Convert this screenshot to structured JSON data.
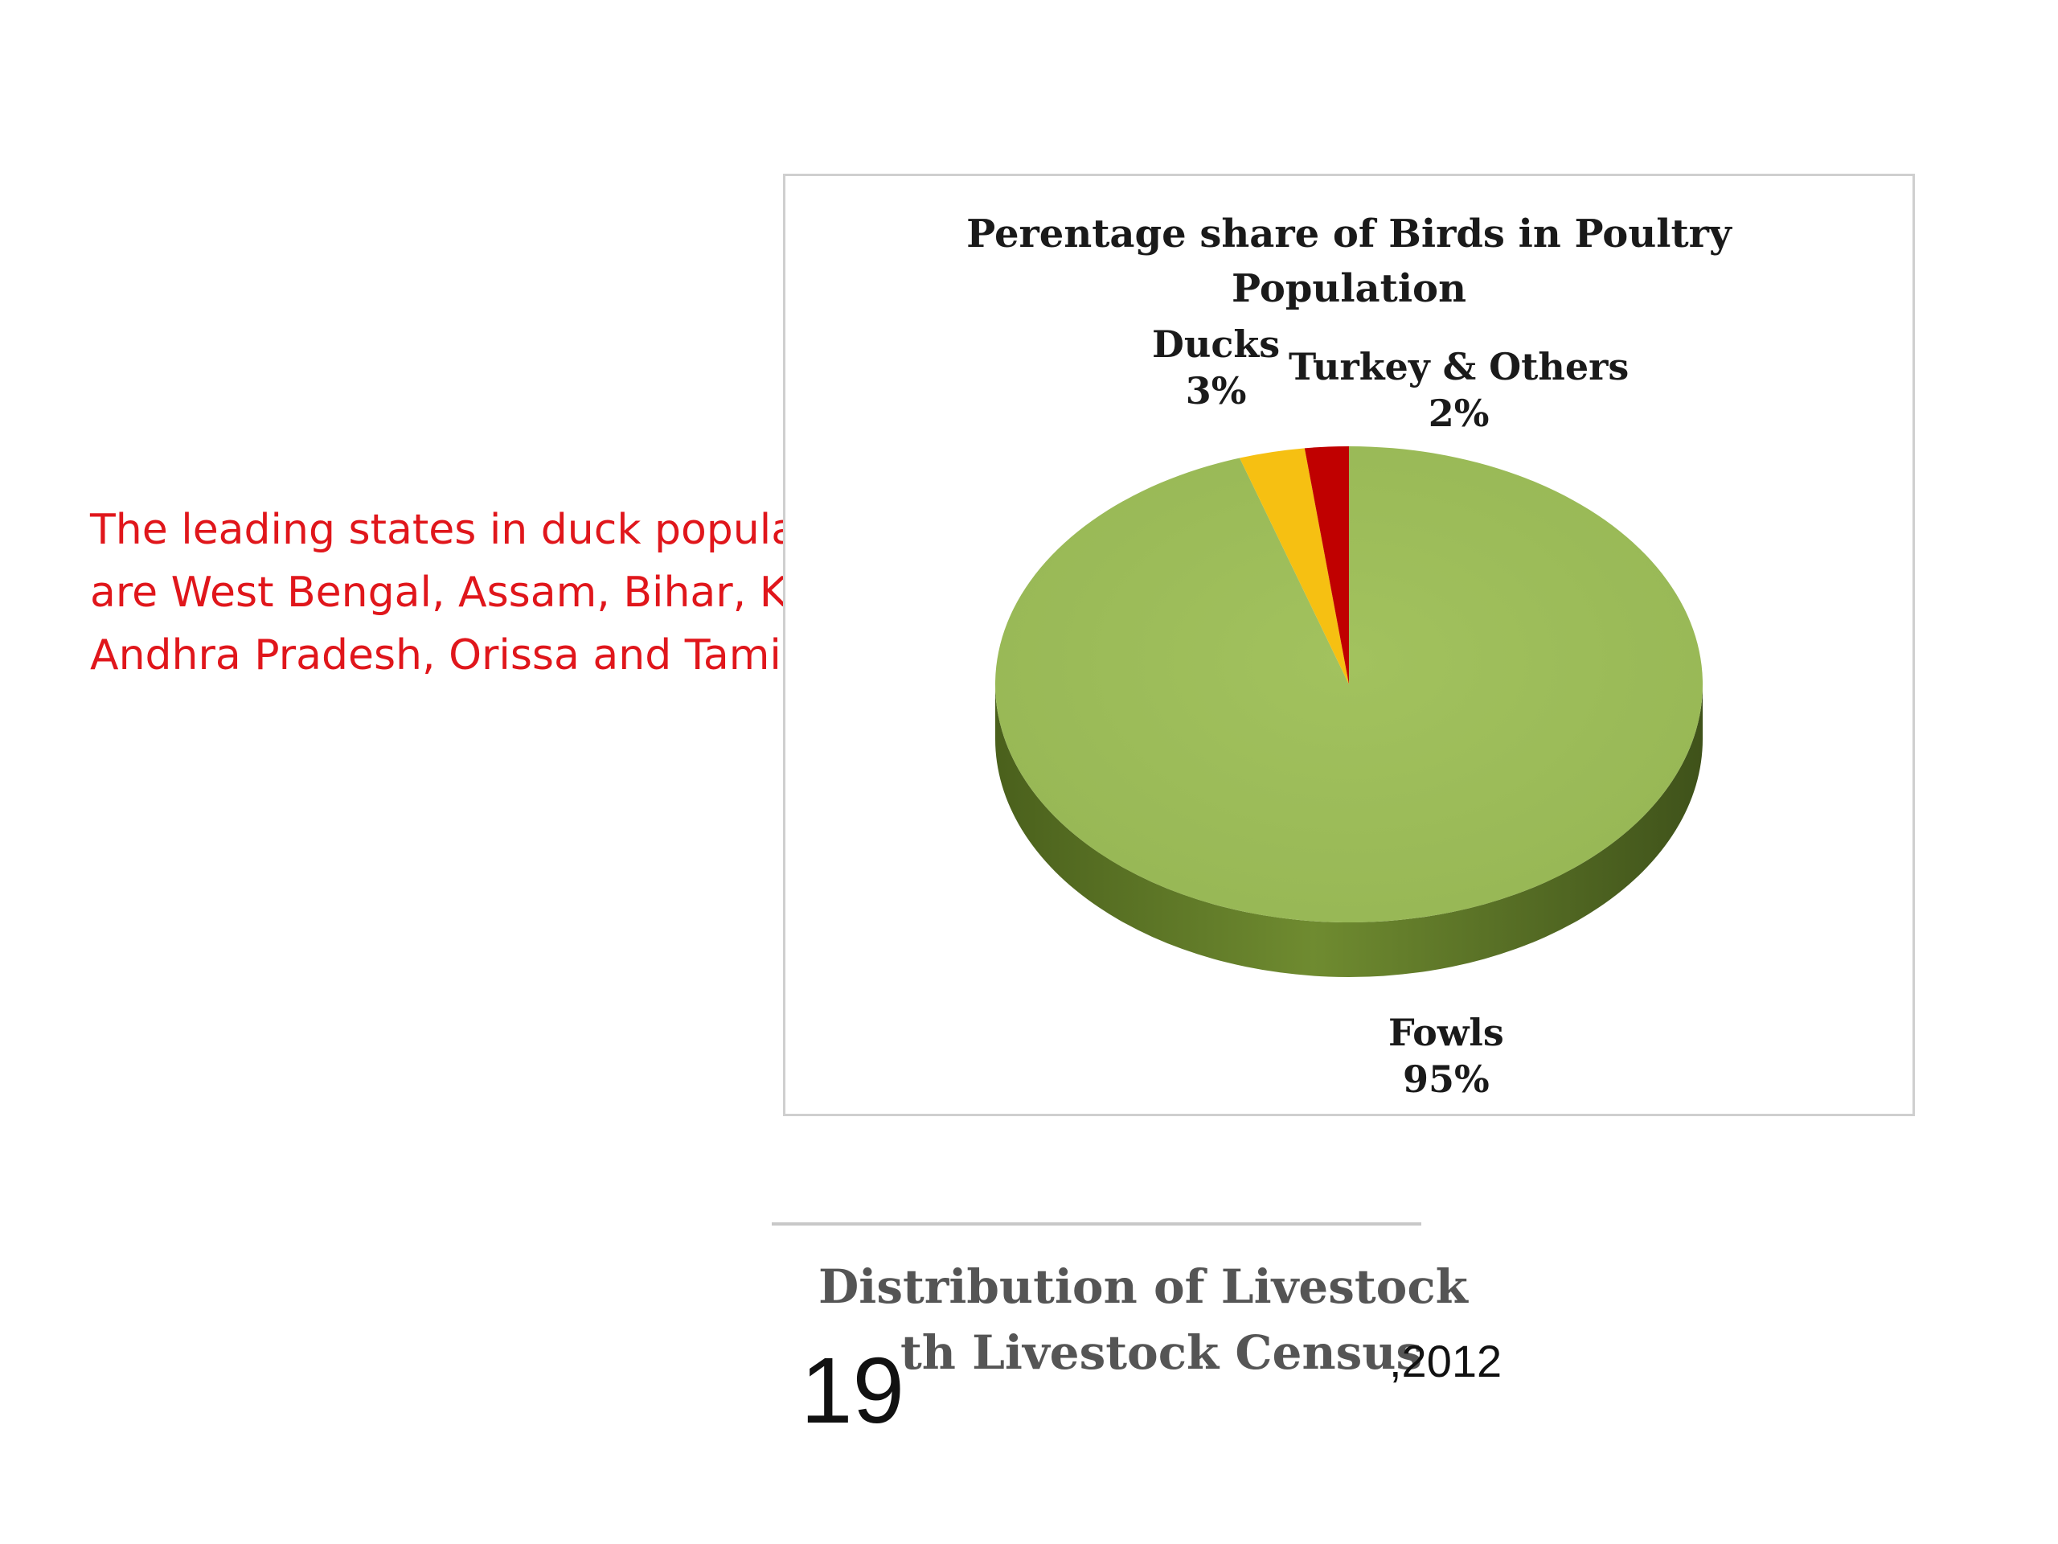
{
  "note": {
    "line1": "The leading states in duck population",
    "line2": "are West Bengal, Assam, Bihar, Kerala,",
    "line3": "Andhra Pradesh, Orissa and Tamil Nadu."
  },
  "chart_data": {
    "type": "pie",
    "style": "3d",
    "title": "Perentage share of Birds in Poultry Population",
    "title_lines": [
      "Perentage share of Birds in Poultry",
      "Population"
    ],
    "categories": [
      "Fowls",
      "Ducks",
      "Turkey & Others"
    ],
    "values": [
      95,
      3,
      2
    ],
    "data_labels": [
      "95%",
      "3%",
      "2%"
    ],
    "colors": [
      "#9bbb59",
      "#f6c012",
      "#c00000"
    ],
    "side_color": "#5a7323",
    "legend": "none"
  },
  "source": {
    "line1": "Distribution of Livestock",
    "number": "19",
    "line2": "th Livestock Census",
    "year": ",2012"
  }
}
